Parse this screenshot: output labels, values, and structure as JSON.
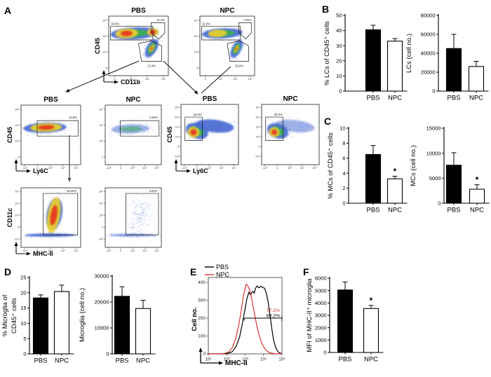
{
  "panels": {
    "a": "A",
    "b": "B",
    "c": "C",
    "d": "D",
    "e": "E",
    "f": "F"
  },
  "colors": {
    "pbs_fill": "#000000",
    "npc_fill": "#ffffff",
    "npc_line": "#d9352f",
    "red_label": "#d9352f"
  },
  "flow_plots": [
    {
      "id": "top-pbs",
      "title": "PBS",
      "ylabel": "CD45",
      "xlabel": "CD11b",
      "yticks": [
        "10⁵",
        "10⁴",
        "10³",
        "0"
      ],
      "xticks": [
        "0",
        "10³",
        "10⁴",
        "10⁵"
      ],
      "gates": [
        "34.5%",
        "11.4%",
        "21.6%"
      ]
    },
    {
      "id": "top-npc",
      "title": "NPC",
      "yticks": [
        "10⁵",
        "10⁴",
        "10³",
        "0"
      ],
      "xticks": [
        "0",
        "10³",
        "10⁴",
        "10⁵"
      ],
      "gates": [
        "31.0%",
        "7.04%",
        "32.6%"
      ]
    },
    {
      "id": "midL-pbs",
      "title": "PBS",
      "ylabel": "CD45",
      "xlabel": "Ly6C",
      "yticks": [
        "10⁵",
        "10⁴",
        "10³",
        "0"
      ],
      "xticks": [
        "-10³",
        "0",
        "10³",
        "10⁴",
        "10⁵"
      ],
      "gates": [
        "10.6%"
      ]
    },
    {
      "id": "midL-npc",
      "title": "NPC",
      "yticks": [
        "10⁵",
        "10⁴",
        "10³",
        "0"
      ],
      "xticks": [
        "-10³",
        "0",
        "10³",
        "10⁴",
        "10⁵"
      ],
      "gates": [
        "5.94%"
      ]
    },
    {
      "id": "botL-pbs",
      "ylabel": "CD11c",
      "xlabel": "MHC-II",
      "yticks": [
        "10⁵",
        "10⁴",
        "10³",
        "0",
        "-10³"
      ],
      "xticks": [
        "-10³",
        "0",
        "10³",
        "10⁴",
        "10⁵"
      ],
      "gates": [
        "10.00%"
      ]
    },
    {
      "id": "botL-npc",
      "yticks": [
        "10⁵",
        "10⁴",
        "10³",
        "0",
        "-10³"
      ],
      "xticks": [
        "-10³",
        "0",
        "10³",
        "10⁴",
        "10⁵"
      ],
      "gates": [
        "3.82%"
      ]
    },
    {
      "id": "midR-pbs",
      "title": "PBS",
      "ylabel": "CD45",
      "xlabel": "Ly6C",
      "yticks": [
        "10⁵",
        "10⁴",
        "10³",
        "10²",
        "0",
        "-10²"
      ],
      "xticks": [
        "-10³",
        "0",
        "10³",
        "10⁴",
        "10⁵"
      ],
      "gates": [
        "16.5%"
      ]
    },
    {
      "id": "midR-npc",
      "title": "NPC",
      "yticks": [
        "10⁵",
        "10⁴",
        "10³",
        "10²",
        "0",
        "-10²"
      ],
      "xticks": [
        "-10³",
        "0",
        "10³",
        "10⁴",
        "10⁵"
      ],
      "gates": [
        "25.0%"
      ]
    }
  ],
  "chart_data": [
    {
      "type": "bar",
      "id": "b1",
      "panel": "B",
      "ylabel": [
        "% LCs of CD45⁺ cells"
      ],
      "categories": [
        "PBS",
        "NPC"
      ],
      "values": [
        40.5,
        33
      ],
      "errors": [
        3,
        1.7
      ],
      "sig": [
        false,
        false
      ],
      "ylim": [
        0,
        50
      ],
      "yticks": [
        0,
        10,
        20,
        30,
        40,
        50
      ]
    },
    {
      "type": "bar",
      "id": "b2",
      "panel": "B",
      "ylabel": [
        "LCs (cell no.)"
      ],
      "categories": [
        "PBS",
        "NPC"
      ],
      "values": [
        45000,
        26000
      ],
      "errors": [
        15000,
        5500
      ],
      "sig": [
        false,
        false
      ],
      "ylim": [
        0,
        80000
      ],
      "yticks": [
        0,
        20000,
        40000,
        60000,
        80000
      ]
    },
    {
      "type": "bar",
      "id": "c1",
      "panel": "C",
      "ylabel": [
        "% MCs of CD45⁺ cells"
      ],
      "categories": [
        "PBS",
        "NPC"
      ],
      "values": [
        6.5,
        3.25
      ],
      "errors": [
        1.2,
        0.35
      ],
      "sig": [
        false,
        true
      ],
      "ylim": [
        0,
        10
      ],
      "yticks": [
        0,
        2,
        4,
        6,
        8,
        10
      ]
    },
    {
      "type": "bar",
      "id": "c2",
      "panel": "C",
      "ylabel": [
        "MCs (cell no.)"
      ],
      "categories": [
        "PBS",
        "NPC"
      ],
      "values": [
        7600,
        2800
      ],
      "errors": [
        2500,
        900
      ],
      "sig": [
        false,
        true
      ],
      "ylim": [
        0,
        15000
      ],
      "yticks": [
        0,
        5000,
        10000,
        15000
      ]
    },
    {
      "type": "bar",
      "id": "d1",
      "panel": "D",
      "ylabel": [
        "% Microglia of",
        "CD45⁺ cells"
      ],
      "categories": [
        "PBS",
        "NPC"
      ],
      "values": [
        18.3,
        20.4
      ],
      "errors": [
        1.0,
        2.1
      ],
      "sig": [
        false,
        false
      ],
      "ylim": [
        0,
        25
      ],
      "yticks": [
        0,
        5,
        10,
        15,
        20,
        25
      ]
    },
    {
      "type": "bar",
      "id": "d2",
      "panel": "D",
      "ylabel": [
        "Microglia (cell no.)"
      ],
      "categories": [
        "PBS",
        "NPC"
      ],
      "values": [
        22200,
        17500
      ],
      "errors": [
        3700,
        3200
      ],
      "sig": [
        false,
        false
      ],
      "ylim": [
        0,
        30000
      ],
      "yticks": [
        0,
        10000,
        20000,
        30000
      ]
    },
    {
      "type": "bar",
      "id": "f1",
      "panel": "F",
      "ylabel": [
        "MFI of MHC-II⁺ microglia"
      ],
      "categories": [
        "PBS",
        "NPC"
      ],
      "values": [
        5050,
        3550
      ],
      "errors": [
        650,
        250
      ],
      "sig": [
        false,
        true
      ],
      "ylim": [
        0,
        6000
      ],
      "yticks": [
        0,
        1000,
        2000,
        3000,
        4000,
        5000,
        6000
      ]
    },
    {
      "type": "line-histogram",
      "id": "e1",
      "panel": "E",
      "ylabel": "Cell no.",
      "xlabel": "MHC-II",
      "ylim": [
        0,
        400
      ],
      "yticks": [
        0,
        100,
        200,
        300,
        400
      ],
      "xticks": [
        "10¹",
        "10²",
        "10³",
        "10⁴",
        "10⁵"
      ],
      "xlog_range": [
        1,
        5
      ],
      "legend": [
        {
          "name": "PBS",
          "color": "#000000"
        },
        {
          "name": "NPC",
          "color": "#d9352f"
        }
      ],
      "series": [
        {
          "name": "PBS",
          "color": "#000000",
          "points": [
            [
              1,
              0
            ],
            [
              1.9,
              1
            ],
            [
              2.1,
              4
            ],
            [
              2.3,
              12
            ],
            [
              2.5,
              40
            ],
            [
              2.7,
              95
            ],
            [
              2.85,
              170
            ],
            [
              3.0,
              255
            ],
            [
              3.1,
              310
            ],
            [
              3.2,
              345
            ],
            [
              3.3,
              330
            ],
            [
              3.4,
              350
            ],
            [
              3.5,
              340
            ],
            [
              3.55,
              365
            ],
            [
              3.65,
              380
            ],
            [
              3.75,
              370
            ],
            [
              3.85,
              378
            ],
            [
              3.95,
              372
            ],
            [
              4.05,
              368
            ],
            [
              4.15,
              340
            ],
            [
              4.25,
              290
            ],
            [
              4.35,
              215
            ],
            [
              4.45,
              140
            ],
            [
              4.55,
              75
            ],
            [
              4.65,
              38
            ],
            [
              4.75,
              16
            ],
            [
              4.85,
              6
            ],
            [
              5,
              1
            ]
          ]
        },
        {
          "name": "NPC",
          "color": "#d9352f",
          "points": [
            [
              1,
              0
            ],
            [
              1.7,
              1
            ],
            [
              1.9,
              3
            ],
            [
              2.1,
              10
            ],
            [
              2.3,
              35
            ],
            [
              2.5,
              90
            ],
            [
              2.65,
              160
            ],
            [
              2.8,
              250
            ],
            [
              2.9,
              320
            ],
            [
              3.0,
              365
            ],
            [
              3.05,
              390
            ],
            [
              3.15,
              380
            ],
            [
              3.25,
              355
            ],
            [
              3.35,
              310
            ],
            [
              3.45,
              255
            ],
            [
              3.55,
              200
            ],
            [
              3.65,
              150
            ],
            [
              3.75,
              108
            ],
            [
              3.85,
              75
            ],
            [
              3.95,
              50
            ],
            [
              4.05,
              32
            ],
            [
              4.15,
              18
            ],
            [
              4.3,
              8
            ],
            [
              4.5,
              3
            ],
            [
              4.7,
              1
            ],
            [
              5,
              0
            ]
          ]
        }
      ],
      "gate": {
        "y": 200,
        "x_from": 2.95,
        "x_to": 5.0,
        "labels": [
          {
            "text": "77.2%",
            "color": "#d9352f"
          },
          {
            "text": "89.2%",
            "color": "#000000"
          }
        ]
      }
    }
  ]
}
